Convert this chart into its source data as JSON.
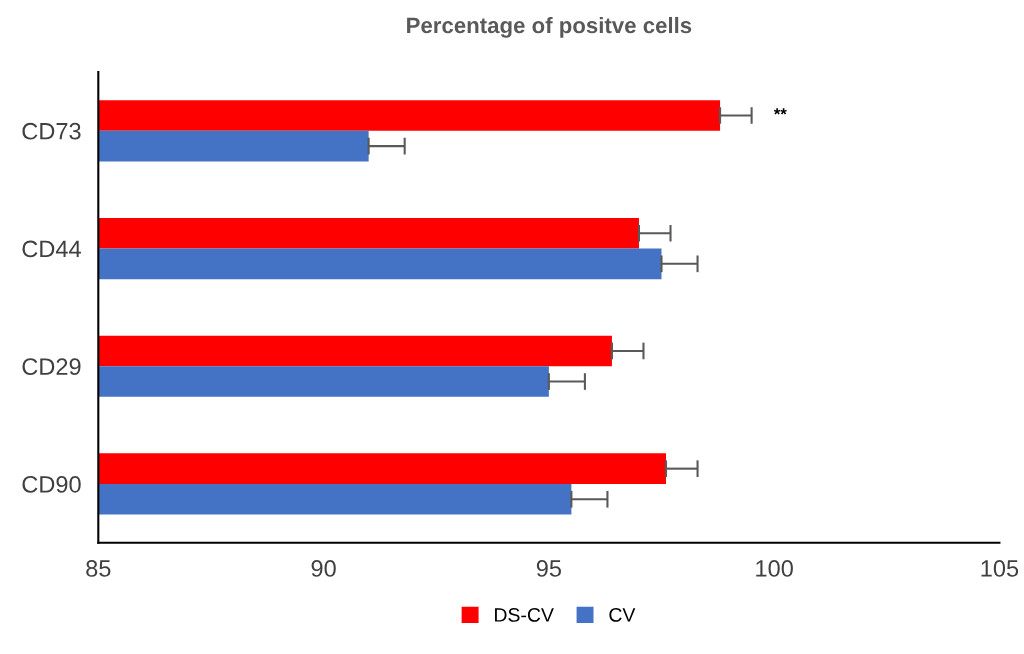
{
  "chart_data": {
    "type": "bar",
    "orientation": "horizontal",
    "title": "Percentage of positve cells",
    "categories": [
      "CD73",
      "CD44",
      "CD29",
      "CD90"
    ],
    "series": [
      {
        "name": "DS-CV",
        "color": "#ff0000",
        "values": [
          98.8,
          97.0,
          96.4,
          97.6
        ],
        "errors": [
          [
            98.8,
            99.5
          ],
          [
            97.0,
            97.7
          ],
          [
            96.4,
            97.1
          ],
          [
            97.6,
            98.3
          ]
        ]
      },
      {
        "name": "CV",
        "color": "#4472c4",
        "values": [
          91.0,
          97.5,
          95.0,
          95.5
        ],
        "errors": [
          [
            91.0,
            91.8
          ],
          [
            97.5,
            98.3
          ],
          [
            95.0,
            95.8
          ],
          [
            95.5,
            96.3
          ]
        ]
      }
    ],
    "xlim": [
      85,
      105
    ],
    "xticks": [
      85,
      90,
      95,
      100,
      105
    ],
    "annotations": [
      "**"
    ],
    "grid": false,
    "legend": "bottom"
  }
}
